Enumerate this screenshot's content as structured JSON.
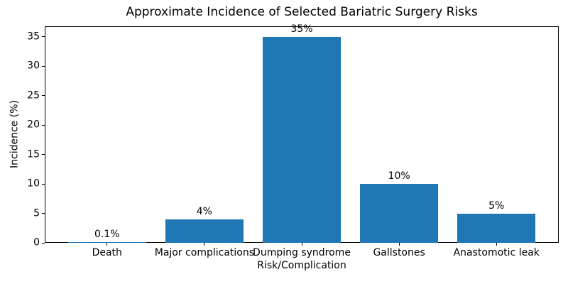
{
  "chart_data": {
    "type": "bar",
    "title": "Approximate Incidence of Selected Bariatric Surgery Risks",
    "xlabel": "Risk/Complication",
    "ylabel": "Incidence (%)",
    "categories": [
      "Death",
      "Major complications",
      "Dumping syndrome",
      "Gallstones",
      "Anastomotic leak"
    ],
    "values": [
      0.1,
      4,
      35,
      10,
      5
    ],
    "bar_labels": [
      "0.1%",
      "4%",
      "35%",
      "10%",
      "5%"
    ],
    "yticks": [
      0,
      5,
      10,
      15,
      20,
      25,
      30,
      35
    ],
    "ylim": [
      0,
      36.75
    ],
    "xlim": [
      -0.64,
      4.64
    ],
    "bar_width": 0.8,
    "bar_color": "#1f77b4",
    "text_color": "#000000",
    "grid": false,
    "legend": null
  }
}
